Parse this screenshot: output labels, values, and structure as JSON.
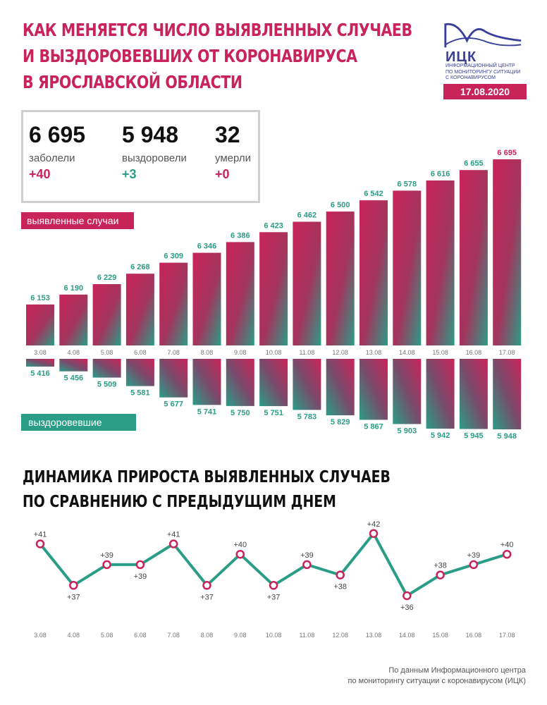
{
  "header": {
    "title_lines": [
      "КАК МЕНЯЕТСЯ ЧИСЛО ВЫЯВЛЕННЫХ СЛУЧАЕВ",
      "И ВЫЗДОРОВЕВШИХ ОТ КОРОНАВИРУСА",
      "В ЯРОСЛАВСКОЙ ОБЛАСТИ"
    ],
    "logo_name": "ИЦК",
    "logo_sub": [
      "ИНФОРМАЦИОННЫЙ ЦЕНТР",
      "ПО МОНИТОРИНГУ СИТУАЦИИ",
      "С КОРОНАВИРУСОМ"
    ],
    "date": "17.08.2020"
  },
  "stats": [
    {
      "value": "6 695",
      "label": "заболели",
      "delta": "+40"
    },
    {
      "value": "5 948",
      "label": "выздоровели",
      "delta": "+3"
    },
    {
      "value": "32",
      "label": "умерли",
      "delta": "+0"
    }
  ],
  "legend": {
    "cases": "выявленные случаи",
    "recovered": "выздоровевшие"
  },
  "subtitle_lines": [
    "ДИНАМИКА ПРИРОСТА ВЫЯВЛЕННЫХ СЛУЧАЕВ",
    "ПО СРАВНЕНИЮ С ПРЕДЫДУЩИМ ДНЕМ"
  ],
  "footer_lines": [
    "По данным Информационного центра",
    "по мониторингу ситуации с коронавирусом (ИЦК)"
  ],
  "colors": {
    "accent": "#c9245a",
    "green": "#2a9d86",
    "brand": "#3a3f9a"
  },
  "chart_data": [
    {
      "type": "bar",
      "categories": [
        "3.08",
        "4.08",
        "5.08",
        "6.08",
        "7.08",
        "8.08",
        "9.08",
        "10.08",
        "11.08",
        "12.08",
        "13.08",
        "14.08",
        "15.08",
        "16.08",
        "17.08"
      ],
      "series": [
        {
          "name": "выявленные случаи",
          "values": [
            6153,
            6190,
            6229,
            6268,
            6309,
            6346,
            6386,
            6423,
            6462,
            6500,
            6542,
            6578,
            6616,
            6655,
            6695
          ],
          "labels": [
            "6 153",
            "6 190",
            "6 229",
            "6 268",
            "6 309",
            "6 346",
            "6 386",
            "6 423",
            "6 462",
            "6 500",
            "6 542",
            "6 578",
            "6 616",
            "6 655",
            "6 695"
          ]
        },
        {
          "name": "выздоровевшие",
          "values": [
            5416,
            5456,
            5509,
            5581,
            5677,
            5741,
            5750,
            5751,
            5783,
            5829,
            5867,
            5903,
            5942,
            5945,
            5948
          ],
          "labels": [
            "5 416",
            "5 456",
            "5 509",
            "5 581",
            "5 677",
            "5 741",
            "5 750",
            "5 751",
            "5 783",
            "5 829",
            "5 867",
            "5 903",
            "5 942",
            "5 945",
            "5 948"
          ]
        }
      ]
    },
    {
      "type": "line",
      "categories": [
        "3.08",
        "4.08",
        "5.08",
        "6.08",
        "7.08",
        "8.08",
        "9.08",
        "10.08",
        "11.08",
        "12.08",
        "13.08",
        "14.08",
        "15.08",
        "16.08",
        "17.08"
      ],
      "values": [
        41,
        37,
        39,
        39,
        41,
        37,
        40,
        37,
        39,
        38,
        42,
        36,
        38,
        39,
        40
      ],
      "labels": [
        "+41",
        "+37",
        "+39",
        "+39",
        "+41",
        "+37",
        "+40",
        "+37",
        "+39",
        "+38",
        "+42",
        "+36",
        "+38",
        "+39",
        "+40"
      ]
    }
  ]
}
